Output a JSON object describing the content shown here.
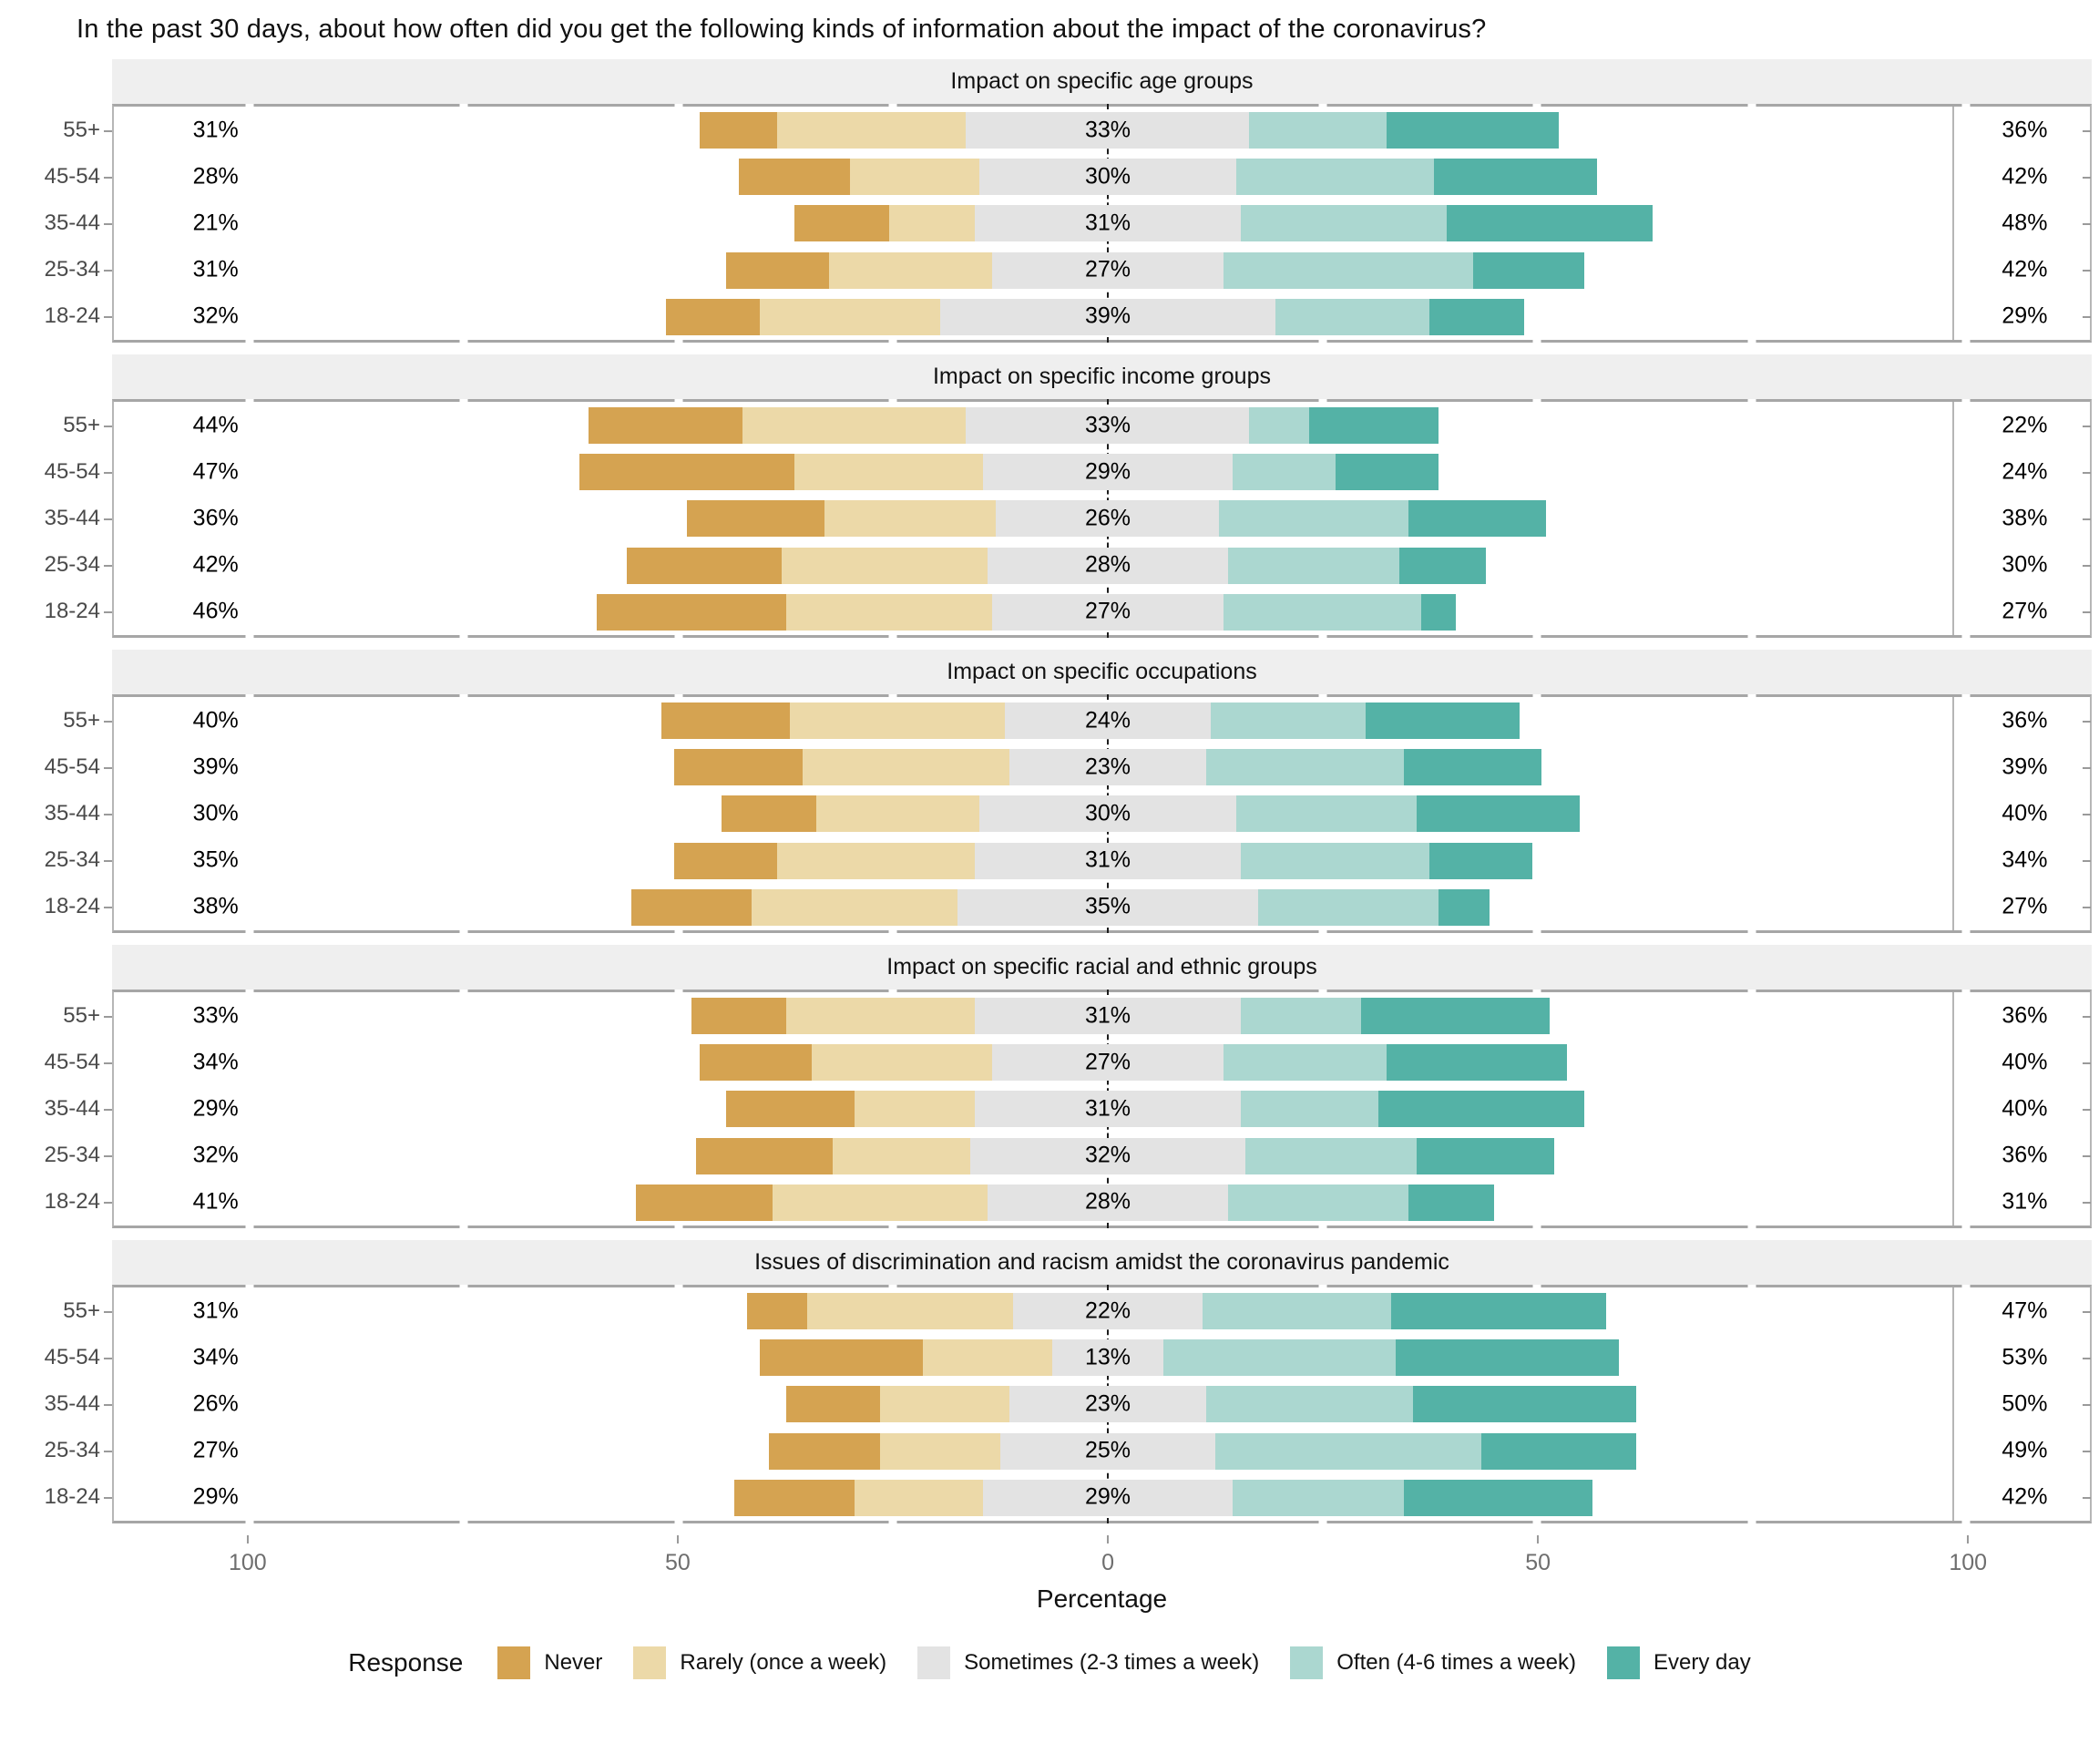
{
  "title": "In the past 30 days, about how often did you get the following kinds of information about the impact of the coronavirus?",
  "x_axis": {
    "label": "Percentage",
    "ticks": [
      {
        "label": "100",
        "value": -100
      },
      {
        "label": "50",
        "value": -50
      },
      {
        "label": "0",
        "value": 0
      },
      {
        "label": "50",
        "value": 50
      },
      {
        "label": "100",
        "value": 100
      }
    ]
  },
  "legend": {
    "title": "Response",
    "items": [
      {
        "label": "Never",
        "color": "#d5a351"
      },
      {
        "label": "Rarely (once a week)",
        "color": "#ecd9a8"
      },
      {
        "label": "Sometimes (2-3 times a week)",
        "color": "#e3e3e3"
      },
      {
        "label": "Often (4-6 times a week)",
        "color": "#abd7d0"
      },
      {
        "label": "Every day",
        "color": "#54b2a6"
      }
    ]
  },
  "colors": {
    "never": "#d5a351",
    "rarely": "#ecd9a8",
    "sometimes": "#e3e3e3",
    "often": "#abd7d0",
    "every_day": "#54b2a6",
    "panel_header_bg": "#efefef",
    "panel_border": "#a6a6a6",
    "axis_text": "#6e6e6e",
    "group_label_text": "#4a4a4a"
  },
  "chart_data": {
    "type": "diverging-stacked-bar",
    "unit": "percent",
    "categories": [
      "55+",
      "45-54",
      "35-44",
      "25-34",
      "18-24"
    ],
    "series_names": [
      "Never",
      "Rarely (once a week)",
      "Sometimes (2-3 times a week)",
      "Often (4-6 times a week)",
      "Every day"
    ],
    "note": "left_label = Never+Rarely, center_label = Sometimes, right_label = Often+Every day",
    "panels": [
      {
        "title": "Impact on specific age groups",
        "rows": [
          {
            "group": "55+",
            "never": 9,
            "rarely": 22,
            "sometimes": 33,
            "often": 16,
            "every_day": 20,
            "left_label": "31%",
            "center_label": "33%",
            "right_label": "36%"
          },
          {
            "group": "45-54",
            "never": 13,
            "rarely": 15,
            "sometimes": 30,
            "often": 23,
            "every_day": 19,
            "left_label": "28%",
            "center_label": "30%",
            "right_label": "42%"
          },
          {
            "group": "35-44",
            "never": 11,
            "rarely": 10,
            "sometimes": 31,
            "often": 24,
            "every_day": 24,
            "left_label": "21%",
            "center_label": "31%",
            "right_label": "48%"
          },
          {
            "group": "25-34",
            "never": 12,
            "rarely": 19,
            "sometimes": 27,
            "often": 29,
            "every_day": 13,
            "left_label": "31%",
            "center_label": "27%",
            "right_label": "42%"
          },
          {
            "group": "18-24",
            "never": 11,
            "rarely": 21,
            "sometimes": 39,
            "often": 18,
            "every_day": 11,
            "left_label": "32%",
            "center_label": "39%",
            "right_label": "29%"
          }
        ]
      },
      {
        "title": "Impact on specific income groups",
        "rows": [
          {
            "group": "55+",
            "never": 18,
            "rarely": 26,
            "sometimes": 33,
            "often": 7,
            "every_day": 15,
            "left_label": "44%",
            "center_label": "33%",
            "right_label": "22%"
          },
          {
            "group": "45-54",
            "never": 25,
            "rarely": 22,
            "sometimes": 29,
            "often": 12,
            "every_day": 12,
            "left_label": "47%",
            "center_label": "29%",
            "right_label": "24%"
          },
          {
            "group": "35-44",
            "never": 16,
            "rarely": 20,
            "sometimes": 26,
            "often": 22,
            "every_day": 16,
            "left_label": "36%",
            "center_label": "26%",
            "right_label": "38%"
          },
          {
            "group": "25-34",
            "never": 18,
            "rarely": 24,
            "sometimes": 28,
            "often": 20,
            "every_day": 10,
            "left_label": "42%",
            "center_label": "28%",
            "right_label": "30%"
          },
          {
            "group": "18-24",
            "never": 22,
            "rarely": 24,
            "sometimes": 27,
            "often": 23,
            "every_day": 4,
            "left_label": "46%",
            "center_label": "27%",
            "right_label": "27%"
          }
        ]
      },
      {
        "title": "Impact on specific occupations",
        "rows": [
          {
            "group": "55+",
            "never": 15,
            "rarely": 25,
            "sometimes": 24,
            "often": 18,
            "every_day": 18,
            "left_label": "40%",
            "center_label": "24%",
            "right_label": "36%"
          },
          {
            "group": "45-54",
            "never": 15,
            "rarely": 24,
            "sometimes": 23,
            "often": 23,
            "every_day": 16,
            "left_label": "39%",
            "center_label": "23%",
            "right_label": "39%"
          },
          {
            "group": "35-44",
            "never": 11,
            "rarely": 19,
            "sometimes": 30,
            "often": 21,
            "every_day": 19,
            "left_label": "30%",
            "center_label": "30%",
            "right_label": "40%"
          },
          {
            "group": "25-34",
            "never": 12,
            "rarely": 23,
            "sometimes": 31,
            "often": 22,
            "every_day": 12,
            "left_label": "35%",
            "center_label": "31%",
            "right_label": "34%"
          },
          {
            "group": "18-24",
            "never": 14,
            "rarely": 24,
            "sometimes": 35,
            "often": 21,
            "every_day": 6,
            "left_label": "38%",
            "center_label": "35%",
            "right_label": "27%"
          }
        ]
      },
      {
        "title": "Impact on specific racial and ethnic groups",
        "rows": [
          {
            "group": "55+",
            "never": 11,
            "rarely": 22,
            "sometimes": 31,
            "often": 14,
            "every_day": 22,
            "left_label": "33%",
            "center_label": "31%",
            "right_label": "36%"
          },
          {
            "group": "45-54",
            "never": 13,
            "rarely": 21,
            "sometimes": 27,
            "often": 19,
            "every_day": 21,
            "left_label": "34%",
            "center_label": "27%",
            "right_label": "40%"
          },
          {
            "group": "35-44",
            "never": 15,
            "rarely": 14,
            "sometimes": 31,
            "often": 16,
            "every_day": 24,
            "left_label": "29%",
            "center_label": "31%",
            "right_label": "40%"
          },
          {
            "group": "25-34",
            "never": 16,
            "rarely": 16,
            "sometimes": 32,
            "often": 20,
            "every_day": 16,
            "left_label": "32%",
            "center_label": "32%",
            "right_label": "36%"
          },
          {
            "group": "18-24",
            "never": 16,
            "rarely": 25,
            "sometimes": 28,
            "often": 21,
            "every_day": 10,
            "left_label": "41%",
            "center_label": "28%",
            "right_label": "31%"
          }
        ]
      },
      {
        "title": "Issues of discrimination and racism amidst the coronavirus pandemic",
        "rows": [
          {
            "group": "55+",
            "never": 7,
            "rarely": 24,
            "sometimes": 22,
            "often": 22,
            "every_day": 25,
            "left_label": "31%",
            "center_label": "22%",
            "right_label": "47%"
          },
          {
            "group": "45-54",
            "never": 19,
            "rarely": 15,
            "sometimes": 13,
            "often": 27,
            "every_day": 26,
            "left_label": "34%",
            "center_label": "13%",
            "right_label": "53%"
          },
          {
            "group": "35-44",
            "never": 11,
            "rarely": 15,
            "sometimes": 23,
            "often": 24,
            "every_day": 26,
            "left_label": "26%",
            "center_label": "23%",
            "right_label": "50%"
          },
          {
            "group": "25-34",
            "never": 13,
            "rarely": 14,
            "sometimes": 25,
            "often": 31,
            "every_day": 18,
            "left_label": "27%",
            "center_label": "25%",
            "right_label": "49%"
          },
          {
            "group": "18-24",
            "never": 14,
            "rarely": 15,
            "sometimes": 29,
            "often": 20,
            "every_day": 22,
            "left_label": "29%",
            "center_label": "29%",
            "right_label": "42%"
          }
        ]
      }
    ]
  }
}
